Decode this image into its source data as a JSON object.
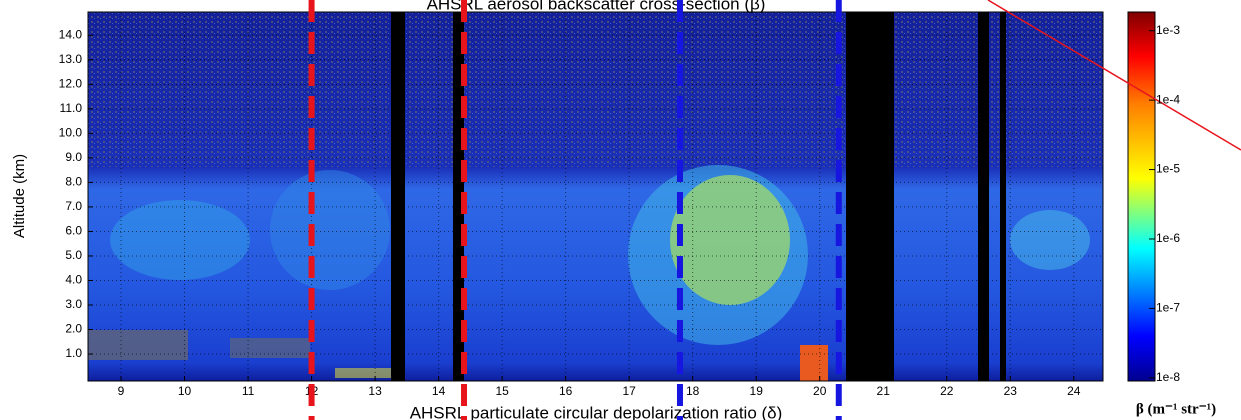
{
  "chart_data": {
    "type": "curtain",
    "title": "AHSRL aerosol backscatter cross-section (β)",
    "subtitle": "AHSRL particulate circular depolarization ratio (δ)",
    "ylabel": "Altitude (km)",
    "xlim": [
      8.48,
      24.46
    ],
    "xticks": [
      9,
      10,
      11,
      12,
      13,
      14,
      15,
      16,
      17,
      18,
      19,
      20,
      21,
      22,
      23,
      24
    ],
    "ylim": [
      -0.1,
      14.95
    ],
    "yticks": [
      {
        "value": 1,
        "label": "1.0"
      },
      {
        "value": 2,
        "label": "2.0"
      },
      {
        "value": 3,
        "label": "3.0"
      },
      {
        "value": 4,
        "label": "4.0"
      },
      {
        "value": 5,
        "label": "5.0"
      },
      {
        "value": 6,
        "label": "6.0"
      },
      {
        "value": 7,
        "label": "7.0"
      },
      {
        "value": 8,
        "label": "8.0"
      },
      {
        "value": 9,
        "label": "9.0"
      },
      {
        "value": 10,
        "label": "10.0"
      },
      {
        "value": 11,
        "label": "11.0"
      },
      {
        "value": 12,
        "label": "12.0"
      },
      {
        "value": 13,
        "label": "13.0"
      },
      {
        "value": 14,
        "label": "14.0"
      }
    ],
    "grid": true,
    "vertical_lines": [
      {
        "x": 12.0,
        "color": "#e8141c"
      },
      {
        "x": 14.4,
        "color": "#e8141c"
      },
      {
        "x": 17.8,
        "color": "#1616e0"
      },
      {
        "x": 20.3,
        "color": "#1616e0"
      }
    ],
    "colorbar": {
      "label": "β (m⁻¹ str⁻¹)",
      "log": true,
      "lim": [
        9e-09,
        0.00186
      ],
      "ticks": [
        {
          "value": 1e-08,
          "label": "1e-8"
        },
        {
          "value": 1e-07,
          "label": "1e-7"
        },
        {
          "value": 1e-06,
          "label": "1e-6"
        },
        {
          "value": 1e-05,
          "label": "1e-5"
        },
        {
          "value": 0.0001,
          "label": "1e-4"
        },
        {
          "value": 0.001,
          "label": "1e-3"
        }
      ]
    }
  }
}
